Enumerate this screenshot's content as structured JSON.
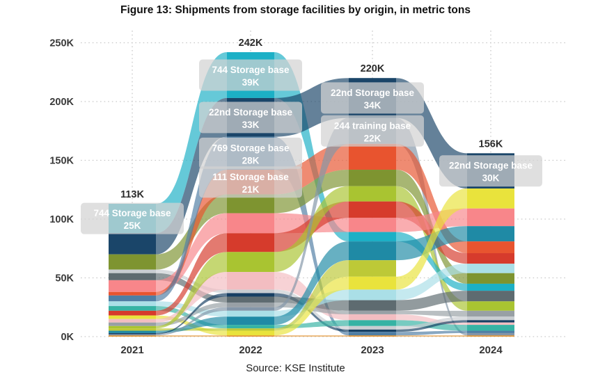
{
  "page": {
    "title": "Figure 13: Shipments from storage facilities by origin, in metric tons",
    "source": "Source: KSE Institute"
  },
  "chart_data": {
    "type": "ribbon",
    "title": "Figure 13: Shipments from storage facilities by origin, in metric tons",
    "source": "Source: KSE Institute",
    "x": [
      "2021",
      "2022",
      "2023",
      "2024"
    ],
    "column_totals": [
      113,
      242,
      220,
      156
    ],
    "column_total_labels": [
      "113K",
      "242K",
      "220K",
      "156K"
    ],
    "ylim": [
      0,
      250
    ],
    "yticks": [
      {
        "value": 0,
        "label": "0K"
      },
      {
        "value": 50,
        "label": "50K"
      },
      {
        "value": 100,
        "label": "100K"
      },
      {
        "value": 150,
        "label": "150K"
      },
      {
        "value": 200,
        "label": "200K"
      },
      {
        "value": 250,
        "label": "250K"
      }
    ],
    "grid": "dotted",
    "legend": "none",
    "series": [
      {
        "id": "s744",
        "name": "744 Storage base",
        "color": "#1cb0c6",
        "values": [
          25,
          39,
          8,
          6
        ]
      },
      {
        "id": "s22nd",
        "name": "22nd Storage base",
        "color": "#1a4569",
        "values": [
          18,
          33,
          34,
          30
        ]
      },
      {
        "id": "s769",
        "name": "769 Storage base",
        "color": "#4f7ea4",
        "values": [
          5,
          28,
          3,
          2
        ]
      },
      {
        "id": "s111",
        "name": "111 Storage base",
        "color": "#e8542f",
        "values": [
          3,
          21,
          22,
          10
        ]
      },
      {
        "id": "s244",
        "name": "244 training base",
        "color": "#8396a8",
        "values": [
          1,
          3,
          22,
          2
        ]
      },
      {
        "id": "olive",
        "name": "",
        "color": "#7e9430",
        "values": [
          13,
          16,
          14,
          9
        ]
      },
      {
        "id": "salmon",
        "name": "",
        "color": "#f8868a",
        "values": [
          10,
          17,
          12,
          15
        ]
      },
      {
        "id": "red",
        "name": "",
        "color": "#d63b2c",
        "values": [
          4,
          16,
          14,
          9
        ]
      },
      {
        "id": "yellowgreen",
        "name": "",
        "color": "#a9c431",
        "values": [
          2,
          17,
          13,
          8
        ]
      },
      {
        "id": "lime",
        "name": "",
        "color": "#bdc937",
        "values": [
          2,
          2,
          14,
          0
        ]
      },
      {
        "id": "palepink",
        "name": "",
        "color": "#f3bdc1",
        "values": [
          3,
          15,
          5,
          2
        ]
      },
      {
        "id": "teal",
        "name": "",
        "color": "#1f8aa5",
        "values": [
          2,
          7,
          16,
          13
        ]
      },
      {
        "id": "yellow",
        "name": "",
        "color": "#e9e33c",
        "values": [
          3,
          4,
          11,
          17
        ]
      },
      {
        "id": "paleaqua",
        "name": "",
        "color": "#aadfe7",
        "values": [
          4,
          5,
          9,
          8
        ]
      },
      {
        "id": "darkgray",
        "name": "",
        "color": "#5e6b70",
        "values": [
          6,
          5,
          9,
          9
        ]
      },
      {
        "id": "gray",
        "name": "",
        "color": "#98a0a5",
        "values": [
          3,
          4,
          3,
          5
        ]
      },
      {
        "id": "lightgray",
        "name": "",
        "color": "#c8cdd1",
        "values": [
          3,
          3,
          3,
          3
        ]
      },
      {
        "id": "green",
        "name": "",
        "color": "#36b3a4",
        "values": [
          4,
          3,
          5,
          5
        ]
      },
      {
        "id": "navy2",
        "name": "",
        "color": "#173f63",
        "values": [
          1,
          3,
          2,
          2
        ]
      },
      {
        "id": "orange",
        "name": "",
        "color": "#e2902c",
        "values": [
          1,
          1,
          1,
          1
        ]
      }
    ],
    "orders": [
      [
        "s744",
        "s22nd",
        "olive",
        "lightgray",
        "darkgray",
        "salmon",
        "s111",
        "s769",
        "paleaqua",
        "green",
        "red",
        "yellow",
        "palepink",
        "gray",
        "yellowgreen",
        "lime",
        "teal",
        "navy2",
        "s244",
        "orange"
      ],
      [
        "s744",
        "s22nd",
        "s769",
        "s111",
        "olive",
        "salmon",
        "red",
        "yellowgreen",
        "palepink",
        "lightgray",
        "navy2",
        "darkgray",
        "gray",
        "s244",
        "paleaqua",
        "teal",
        "green",
        "lime",
        "yellow",
        "orange"
      ],
      [
        "s22nd",
        "s244",
        "s111",
        "olive",
        "yellowgreen",
        "red",
        "salmon",
        "s744",
        "teal",
        "lime",
        "yellow",
        "paleaqua",
        "darkgray",
        "gray",
        "palepink",
        "green",
        "lightgray",
        "navy2",
        "s769",
        "orange"
      ],
      [
        "s22nd",
        "yellow",
        "salmon",
        "teal",
        "s111",
        "red",
        "paleaqua",
        "olive",
        "s744",
        "darkgray",
        "yellowgreen",
        "gray",
        "lightgray",
        "navy2",
        "palepink",
        "green",
        "s769",
        "s244",
        "lime",
        "orange"
      ]
    ],
    "callouts": [
      {
        "year_index": 0,
        "series": "s744",
        "label_lines": [
          "744 Storage base",
          "25K"
        ]
      },
      {
        "year_index": 1,
        "series": "s744",
        "label_lines": [
          "744 Storage base",
          "39K"
        ]
      },
      {
        "year_index": 1,
        "series": "s22nd",
        "label_lines": [
          "22nd Storage base",
          "33K"
        ]
      },
      {
        "year_index": 1,
        "series": "s769",
        "label_lines": [
          "769 Storage base",
          "28K"
        ]
      },
      {
        "year_index": 1,
        "series": "s111",
        "label_lines": [
          "111 Storage base",
          "21K"
        ]
      },
      {
        "year_index": 2,
        "series": "s22nd",
        "label_lines": [
          "22nd Storage base",
          "34K"
        ]
      },
      {
        "year_index": 2,
        "series": "s244",
        "label_lines": [
          "244 training base",
          "22K"
        ]
      },
      {
        "year_index": 3,
        "series": "s22nd",
        "label_lines": [
          "22nd Storage base",
          "30K"
        ]
      }
    ],
    "colors": {
      "callout_bg": "#d2d2d2",
      "callout_text": "#ffffff",
      "grid": "#c9c9c9",
      "axis_text": "#3a3a3a",
      "title_text": "#111111"
    }
  }
}
